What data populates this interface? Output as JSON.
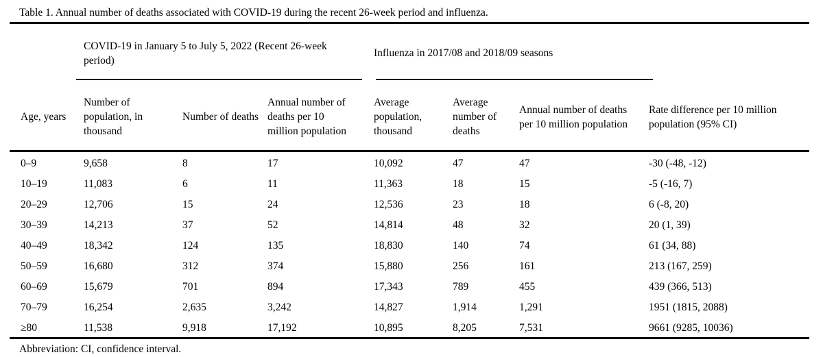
{
  "title": "Table 1. Annual number of deaths associated with COVID-19 during the recent 26-week period and influenza.",
  "footnote": "Abbreviation: CI, confidence interval.",
  "colors": {
    "text": "#000000",
    "background": "#ffffff",
    "rule": "#000000"
  },
  "table": {
    "spanners": [
      {
        "label": "COVID-19 in January 5 to July 5, 2022 (Recent 26-week\nperiod)",
        "covers_columns": [
          2,
          3,
          4
        ]
      },
      {
        "label": "Influenza in 2017/08 and 2018/09 seasons",
        "covers_columns": [
          5,
          6,
          7
        ]
      }
    ],
    "columns": [
      "Age, years",
      "Number of\npopulation, in\nthousand",
      "Number of deaths",
      "Annual number of\ndeaths per 10\nmillion population",
      "Average\npopulation,\nthousand",
      "Average\nnumber of\ndeaths",
      "Annual number of deaths\nper 10 million population",
      "Rate difference per 10 million\npopulation (95% CI)"
    ],
    "rows": [
      [
        "0–9",
        "9,658",
        "8",
        "17",
        "10,092",
        "47",
        "47",
        "-30 (-48, -12)"
      ],
      [
        "10–19",
        "11,083",
        "6",
        "11",
        "11,363",
        "18",
        "15",
        "-5 (-16, 7)"
      ],
      [
        "20–29",
        "12,706",
        "15",
        "24",
        "12,536",
        "23",
        "18",
        "6 (-8, 20)"
      ],
      [
        "30–39",
        "14,213",
        "37",
        "52",
        "14,814",
        "48",
        "32",
        "20 (1, 39)"
      ],
      [
        "40–49",
        "18,342",
        "124",
        "135",
        "18,830",
        "140",
        "74",
        "61 (34, 88)"
      ],
      [
        "50–59",
        "16,680",
        "312",
        "374",
        "15,880",
        "256",
        "161",
        "213 (167, 259)"
      ],
      [
        "60–69",
        "15,679",
        "701",
        "894",
        "17,343",
        "789",
        "455",
        "439 (366, 513)"
      ],
      [
        "70–79",
        "16,254",
        "2,635",
        "3,242",
        "14,827",
        "1,914",
        "1,291",
        "1951 (1815, 2088)"
      ],
      [
        "≥80",
        "11,538",
        "9,918",
        "17,192",
        "10,895",
        "8,205",
        "7,531",
        "9661 (9285, 10036)"
      ]
    ]
  }
}
